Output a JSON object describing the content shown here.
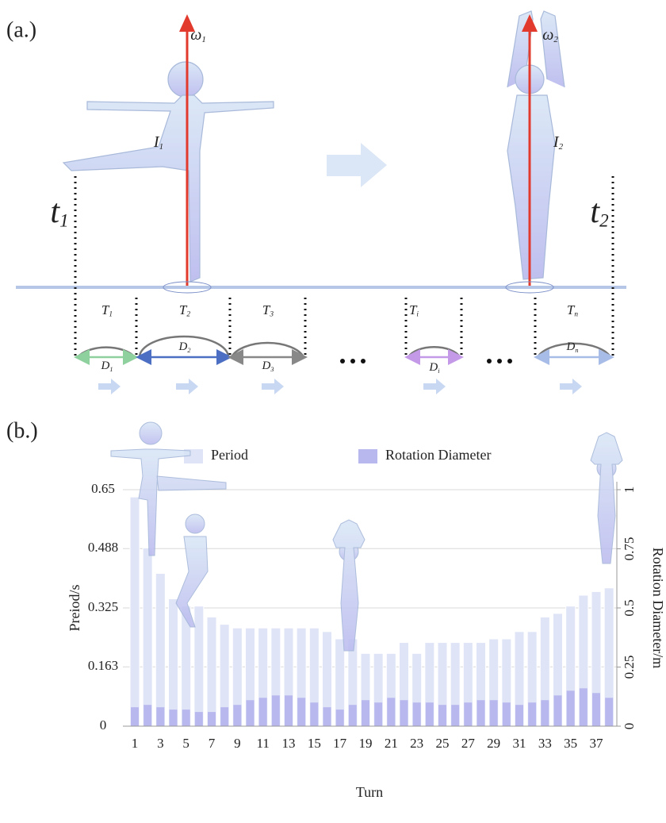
{
  "panel_a": {
    "label": "(a.)",
    "omega1": {
      "symbol": "ω",
      "sub": "1"
    },
    "omega2": {
      "symbol": "ω",
      "sub": "2"
    },
    "inertia1": {
      "symbol": "I",
      "sub": "1"
    },
    "inertia2": {
      "symbol": "I",
      "sub": "2"
    },
    "time1": {
      "symbol": "t",
      "sub": "1"
    },
    "time2": {
      "symbol": "t",
      "sub": "2"
    },
    "periods": [
      {
        "symbol": "T",
        "sub": "1"
      },
      {
        "symbol": "T",
        "sub": "2"
      },
      {
        "symbol": "T",
        "sub": "3"
      },
      {
        "symbol": "T",
        "sub": "i"
      },
      {
        "symbol": "T",
        "sub": "n"
      }
    ],
    "diameters": [
      {
        "symbol": "D",
        "sub": "1"
      },
      {
        "symbol": "D",
        "sub": "2"
      },
      {
        "symbol": "D",
        "sub": "3"
      },
      {
        "symbol": "D",
        "sub": "i"
      },
      {
        "symbol": "D",
        "sub": "n"
      }
    ]
  },
  "panel_b_label": "(b.)",
  "chart_data": {
    "type": "bar",
    "x_label": "Turn",
    "y_label": "Preiod/s",
    "y2_label": "Rotation Diameter/m",
    "categories": [
      "1",
      null,
      "3",
      null,
      "5",
      null,
      "7",
      null,
      "9",
      null,
      "11",
      null,
      "13",
      null,
      "15",
      null,
      "17",
      null,
      "19",
      null,
      "21",
      null,
      "23",
      null,
      "25",
      null,
      "27",
      null,
      "29",
      null,
      "31",
      null,
      "33",
      null,
      "35",
      null,
      "37",
      null
    ],
    "series": [
      {
        "name": "Period",
        "color": "#dfe5f7",
        "values": [
          0.63,
          0.49,
          0.42,
          0.35,
          0.33,
          0.33,
          0.3,
          0.28,
          0.27,
          0.27,
          0.27,
          0.27,
          0.27,
          0.27,
          0.27,
          0.26,
          0.24,
          0.24,
          0.2,
          0.2,
          0.2,
          0.23,
          0.2,
          0.23,
          0.23,
          0.23,
          0.23,
          0.23,
          0.24,
          0.24,
          0.26,
          0.26,
          0.3,
          0.31,
          0.33,
          0.36,
          0.37,
          0.38
        ]
      },
      {
        "name": "Rotation Diameter",
        "color": "#b8b8ee",
        "axis": "y2",
        "values": [
          0.08,
          0.09,
          0.08,
          0.07,
          0.07,
          0.06,
          0.06,
          0.08,
          0.09,
          0.11,
          0.12,
          0.13,
          0.13,
          0.12,
          0.1,
          0.08,
          0.07,
          0.09,
          0.11,
          0.1,
          0.12,
          0.11,
          0.1,
          0.1,
          0.09,
          0.09,
          0.1,
          0.11,
          0.11,
          0.1,
          0.09,
          0.1,
          0.11,
          0.13,
          0.15,
          0.16,
          0.14,
          0.12
        ]
      }
    ],
    "ylim": [
      0,
      0.65
    ],
    "yticks": [
      0,
      0.163,
      0.325,
      0.488,
      0.65
    ],
    "y2lim": [
      0,
      1
    ],
    "y2ticks": [
      0,
      0.25,
      0.5,
      0.75,
      1
    ],
    "grid": true,
    "legend": "top"
  }
}
